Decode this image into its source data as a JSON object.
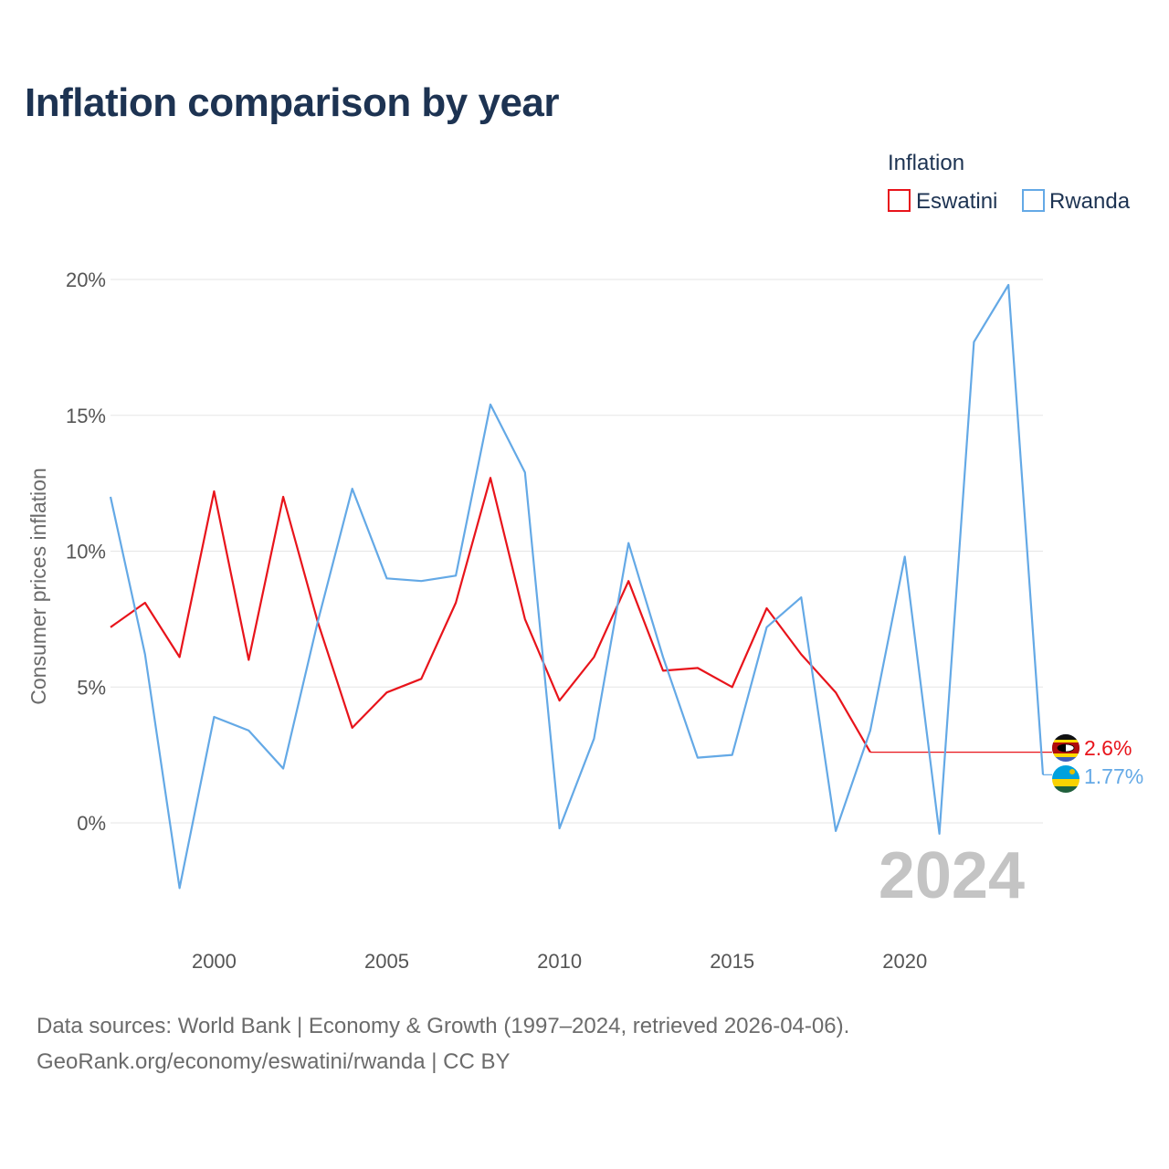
{
  "title": "Inflation comparison by year",
  "legend": {
    "title": "Inflation",
    "items": [
      {
        "name": "Eswatini",
        "color": "#e8141b"
      },
      {
        "name": "Rwanda",
        "color": "#64a9e6"
      }
    ]
  },
  "footer": {
    "line1": "Data sources: World Bank | Economy & Growth (1997–2024, retrieved 2026-04-06).",
    "line2": "GeoRank.org/economy/eswatini/rwanda | CC BY"
  },
  "chart_data": {
    "type": "line",
    "title": "Inflation comparison by year",
    "xlabel": "",
    "ylabel": "Consumer prices inflation",
    "xlim": [
      1997,
      2024
    ],
    "ylim": [
      -4,
      20
    ],
    "x_ticks": [
      2000,
      2005,
      2010,
      2015,
      2020
    ],
    "y_ticks": [
      0,
      5,
      10,
      15,
      20
    ],
    "y_tick_labels": [
      "0%",
      "5%",
      "10%",
      "15%",
      "20%"
    ],
    "year_label": "2024",
    "grid": true,
    "legend_position": "top-right",
    "series": [
      {
        "name": "Eswatini",
        "color": "#e8141b",
        "x": [
          1997,
          1998,
          1999,
          2000,
          2001,
          2002,
          2003,
          2004,
          2005,
          2006,
          2007,
          2008,
          2009,
          2010,
          2011,
          2012,
          2013,
          2014,
          2015,
          2016,
          2017,
          2018,
          2019
        ],
        "values": [
          7.2,
          8.1,
          6.1,
          12.2,
          6.0,
          12.0,
          7.4,
          3.5,
          4.8,
          5.3,
          8.1,
          12.7,
          7.5,
          4.5,
          6.1,
          8.9,
          5.6,
          5.7,
          5.0,
          7.9,
          6.2,
          4.8,
          2.6
        ],
        "end_value": 2.6,
        "end_label": "2.6%"
      },
      {
        "name": "Rwanda",
        "color": "#64a9e6",
        "x": [
          1997,
          1998,
          1999,
          2000,
          2001,
          2002,
          2003,
          2004,
          2005,
          2006,
          2007,
          2008,
          2009,
          2010,
          2011,
          2012,
          2013,
          2014,
          2015,
          2016,
          2017,
          2018,
          2019,
          2020,
          2021,
          2022,
          2023,
          2024
        ],
        "values": [
          12.0,
          6.2,
          -2.4,
          3.9,
          3.4,
          2.0,
          7.4,
          12.3,
          9.0,
          8.9,
          9.1,
          15.4,
          12.9,
          -0.2,
          3.1,
          10.3,
          6.1,
          2.4,
          2.5,
          7.2,
          8.3,
          -0.3,
          3.4,
          9.8,
          -0.4,
          17.7,
          19.8,
          1.77
        ],
        "end_value": 1.77,
        "end_label": "1.77%"
      }
    ]
  }
}
